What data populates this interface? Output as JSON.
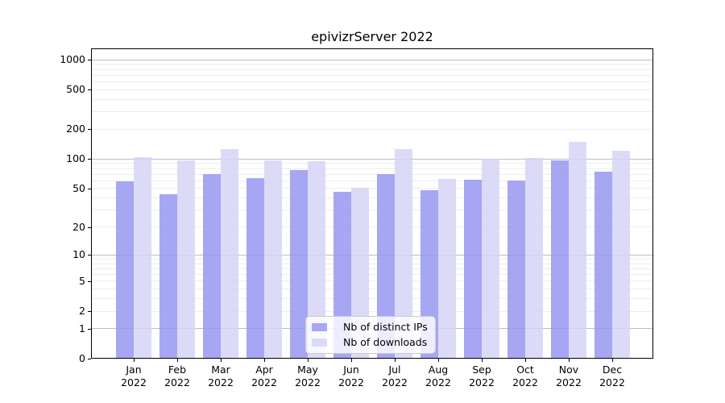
{
  "chart_data": {
    "type": "bar",
    "title": "epivizrServer 2022",
    "categories": [
      "Jan 2022",
      "Feb 2022",
      "Mar 2022",
      "Apr 2022",
      "May 2022",
      "Jun 2022",
      "Jul 2022",
      "Aug 2022",
      "Sep 2022",
      "Oct 2022",
      "Nov 2022",
      "Dec 2022"
    ],
    "series": [
      {
        "name": "Nb of distinct IPs",
        "color": "#a7a7f3",
        "values": [
          59,
          44,
          70,
          64,
          77,
          46,
          70,
          48,
          61,
          60,
          97,
          74
        ]
      },
      {
        "name": "Nb of downloads",
        "color": "#dbdbf8",
        "values": [
          104,
          96,
          125,
          97,
          95,
          51,
          125,
          63,
          100,
          102,
          148,
          121
        ]
      }
    ],
    "xlabel": "",
    "ylabel": "",
    "yscale": "log1p",
    "ylim": [
      0,
      1300
    ],
    "yticks": [
      0,
      1,
      2,
      5,
      10,
      20,
      50,
      100,
      200,
      500,
      1000
    ],
    "grid": true,
    "legend_position": "inside-bottom-center",
    "colors": {
      "major_grid": "#bdbdbd",
      "minor_grid": "#ededed",
      "axis": "#000000",
      "text": "#000000",
      "background": "#ffffff"
    }
  }
}
